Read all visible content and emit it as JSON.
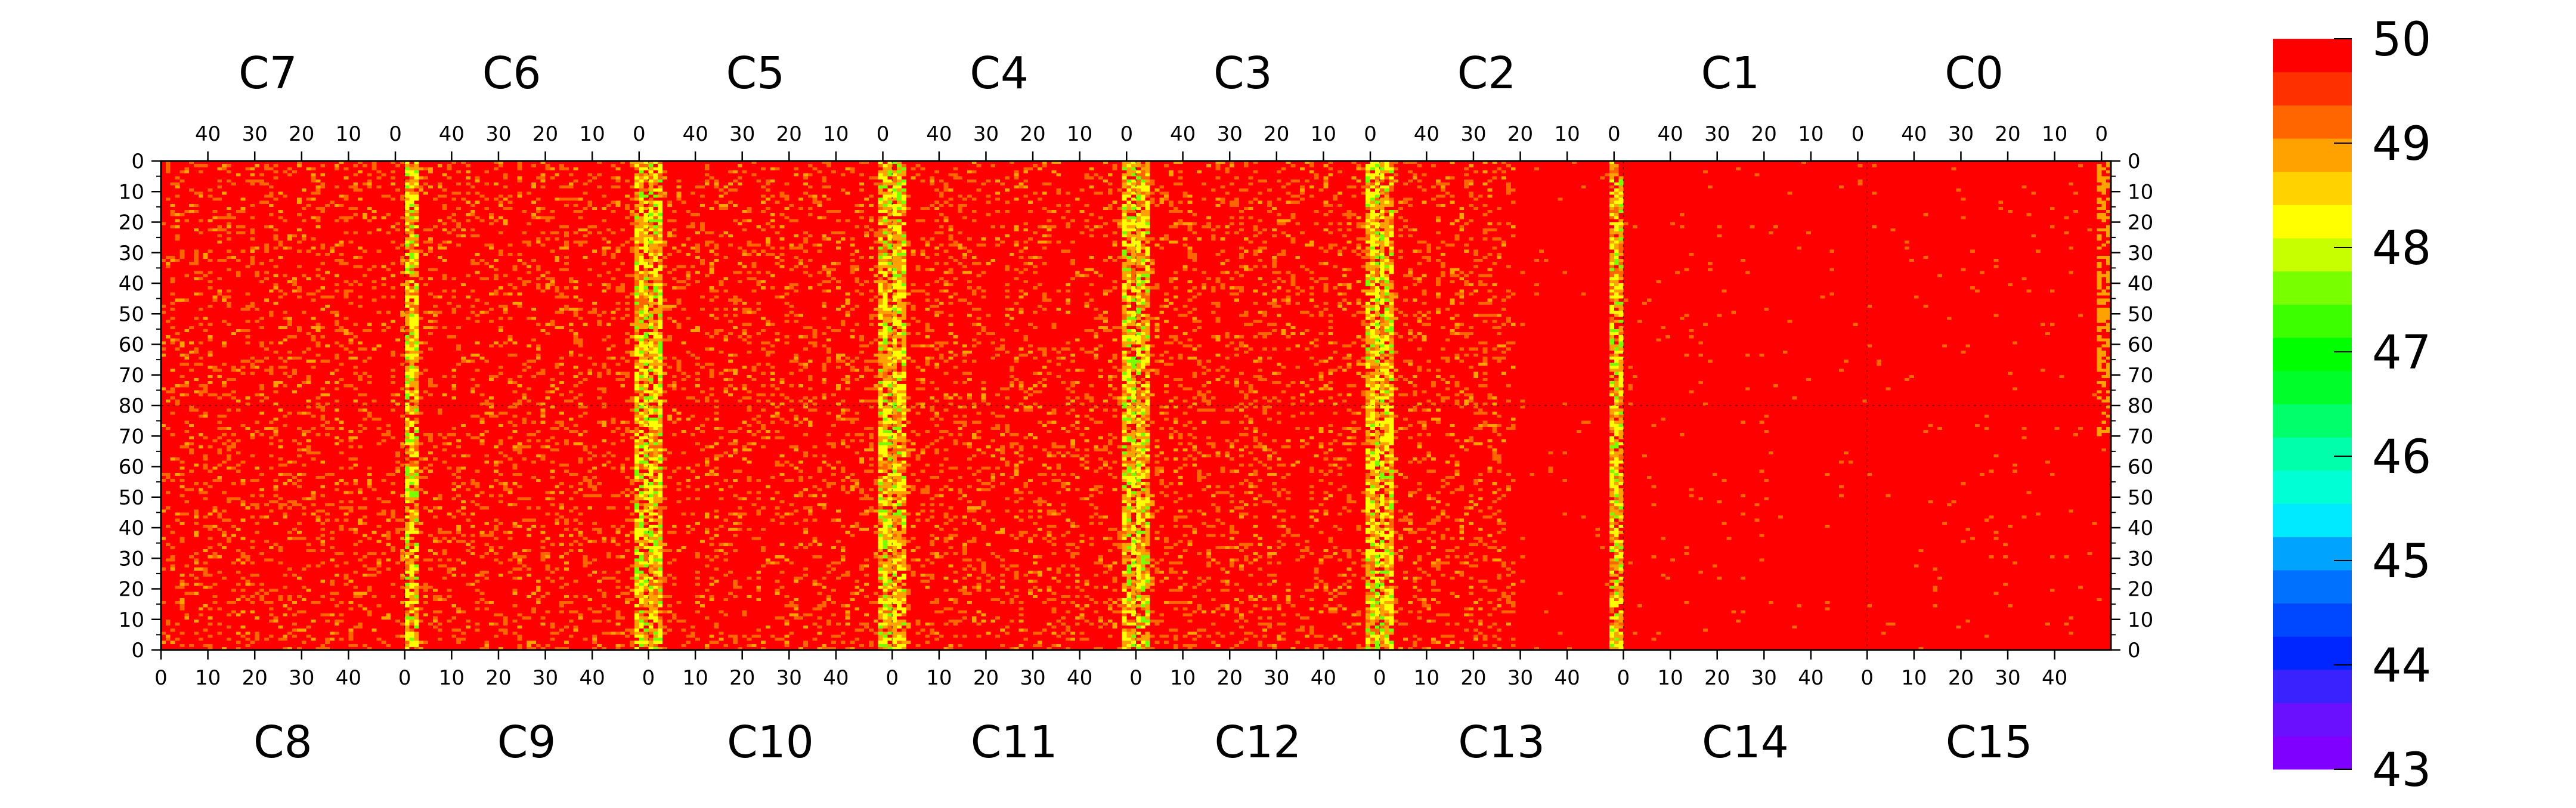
{
  "chart_data": {
    "type": "heatmap",
    "colorbar": {
      "min": 43,
      "max": 50,
      "tick_labels": [
        "50",
        "49",
        "48",
        "47",
        "46",
        "45",
        "44",
        "43"
      ],
      "levels": [
        "#7f00ff",
        "#6a10ff",
        "#3a22ff",
        "#0026ff",
        "#0048ff",
        "#0070ff",
        "#00a4ff",
        "#00eaff",
        "#00ffd5",
        "#00ffaa",
        "#00ff6a",
        "#00ff2a",
        "#00ff00",
        "#3cff00",
        "#78ff00",
        "#c8ff00",
        "#ffff00",
        "#ffd200",
        "#ffa200",
        "#ff6600",
        "#ff3000",
        "#ff0000"
      ]
    },
    "chip_labels_top": [
      "C7",
      "C6",
      "C5",
      "C4",
      "C3",
      "C2",
      "C1",
      "C0"
    ],
    "chip_labels_bottom": [
      "C8",
      "C9",
      "C10",
      "C11",
      "C12",
      "C13",
      "C14",
      "C15"
    ],
    "x_ticks_top": [
      "40",
      "30",
      "20",
      "10",
      "0"
    ],
    "x_ticks_bottom": [
      "0",
      "10",
      "20",
      "30",
      "40"
    ],
    "y_ticks": [
      "0",
      "10",
      "20",
      "30",
      "40",
      "50",
      "60",
      "70",
      "80",
      "70",
      "60",
      "50",
      "40",
      "30",
      "20",
      "10",
      "0"
    ],
    "grid": {
      "chips": 8,
      "cols_per_chip": 52,
      "rows_per_half": 80,
      "dominant_value": 50,
      "noisy_chip_count": 6
    },
    "colors": {
      "base": "#ff0000",
      "noise": "#ff6600",
      "warm": "#ffa200",
      "hot_stripe": "#ffff00",
      "green_stripe": "#78ff00"
    }
  }
}
